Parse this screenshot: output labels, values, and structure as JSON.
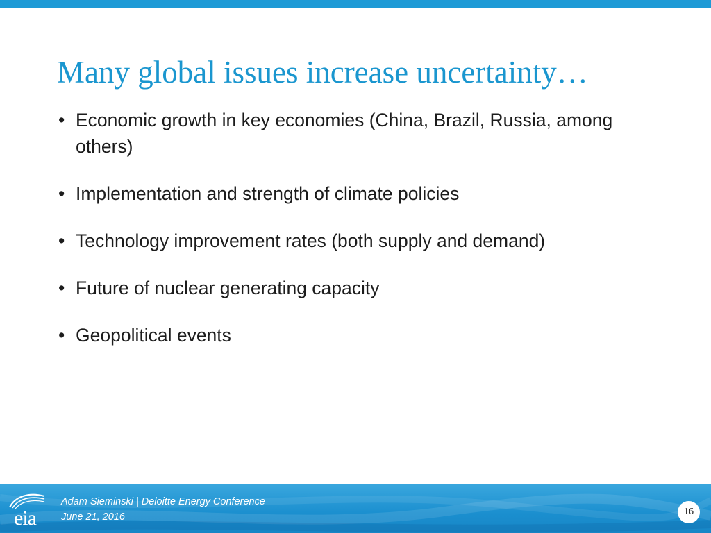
{
  "slide": {
    "title": "Many global issues increase uncertainty…",
    "bullets": [
      "Economic growth in key economies (China, Brazil, Russia, among others)",
      "Implementation and strength of climate policies",
      "Technology improvement rates (both supply and demand)",
      "Future of nuclear generating capacity",
      "Geopolitical events"
    ]
  },
  "footer": {
    "logo_text": "eia",
    "presenter_line": "Adam Sieminski | Deloitte Energy Conference",
    "date_line": "June 21, 2016",
    "page_number": "16"
  },
  "colors": {
    "accent": "#1e9ad6",
    "title": "#1a96cf",
    "body_text": "#1c1c1c"
  }
}
